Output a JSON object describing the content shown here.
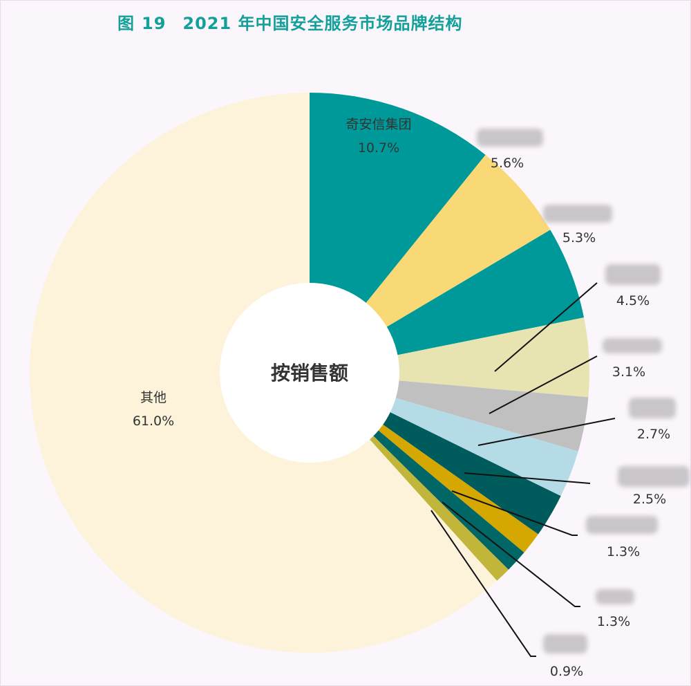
{
  "header": {
    "fig_prefix": "图",
    "fig_number": "19",
    "title": "2021 年中国安全服务市场品牌结构"
  },
  "chart_data": {
    "type": "pie",
    "donut": true,
    "center_label": "按销售额",
    "start_angle_deg": 0,
    "direction": "clockwise",
    "unit": "%",
    "slices": [
      {
        "label": "奇安信集团",
        "value": 10.7,
        "value_label": "10.7%",
        "color": "#009999"
      },
      {
        "label": "",
        "value": 5.6,
        "value_label": "5.6%",
        "color": "#f9d975"
      },
      {
        "label": "",
        "value": 5.3,
        "value_label": "5.3%",
        "color": "#009999"
      },
      {
        "label": "",
        "value": 4.5,
        "value_label": "4.5%",
        "color": "#e8e4b2"
      },
      {
        "label": "",
        "value": 3.1,
        "value_label": "3.1%",
        "color": "#c0c0c0"
      },
      {
        "label": "",
        "value": 2.7,
        "value_label": "2.7%",
        "color": "#b5dce6"
      },
      {
        "label": "",
        "value": 2.5,
        "value_label": "2.5%",
        "color": "#005c5c"
      },
      {
        "label": "",
        "value": 1.3,
        "value_label": "1.3%",
        "color": "#d4a800"
      },
      {
        "label": "",
        "value": 1.3,
        "value_label": "1.3%",
        "color": "#006666"
      },
      {
        "label": "",
        "value": 0.9,
        "value_label": "0.9%",
        "color": "#c2b63a"
      },
      {
        "label": "其他",
        "value": 61.0,
        "value_label": "61.0%",
        "color": "#fdf3db"
      }
    ]
  }
}
